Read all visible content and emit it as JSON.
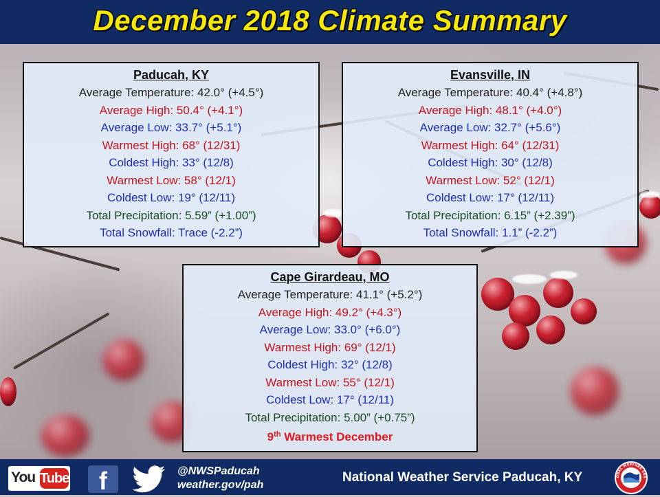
{
  "header": {
    "title": "December 2018 Climate Summary"
  },
  "stations": {
    "paducah": {
      "name": "Paducah, KY",
      "avg_temp": "Average Temperature: 42.0° (+4.5°)",
      "avg_high": "Average High: 50.4° (+4.1°)",
      "avg_low": "Average Low: 33.7° (+5.1°)",
      "warmest_high": "Warmest High: 68° (12/31)",
      "coldest_high": "Coldest High: 33° (12/8)",
      "warmest_low": "Warmest Low: 58° (12/1)",
      "coldest_low": "Coldest Low: 19° (12/11)",
      "total_precip": "Total Precipitation: 5.59” (+1.00”)",
      "total_snow": "Total Snowfall: Trace (-2.2”)"
    },
    "evansville": {
      "name": "Evansville, IN",
      "avg_temp": "Average Temperature: 40.4° (+4.8°)",
      "avg_high": "Average High: 48.1° (+4.0°)",
      "avg_low": "Average Low: 32.7° (+5.6°)",
      "warmest_high": "Warmest High: 64° (12/31)",
      "coldest_high": "Coldest High: 30° (12/8)",
      "warmest_low": "Warmest Low: 52° (12/1)",
      "coldest_low": "Coldest Low: 17° (12/11)",
      "total_precip": "Total Precipitation: 6.15” (+2.39”)",
      "total_snow": "Total Snowfall: 1.1” (-2.2”)"
    },
    "cape": {
      "name": "Cape Girardeau, MO",
      "avg_temp": "Average Temperature: 41.1° (+5.2°)",
      "avg_high": "Average High: 49.2° (+4.3°)",
      "avg_low": "Average Low: 33.0° (+6.0°)",
      "warmest_high": "Warmest High: 69° (12/1)",
      "coldest_high": "Coldest High: 32° (12/8)",
      "warmest_low": "Warmest Low: 55° (12/1)",
      "coldest_low": "Coldest Low: 17° (12/11)",
      "total_precip": "Total Precipitation: 5.00” (+0.75”)",
      "rank_num": "9",
      "rank_sup": "th",
      "rank_text": " Warmest December"
    }
  },
  "footer": {
    "youtube_you": "You",
    "youtube_tube": "Tube",
    "facebook_glyph": "f",
    "twitter_handle": "@NWSPaducah",
    "website": "weather.gov/pah",
    "office": "National Weather Service Paducah, KY",
    "logo_text": "NATIONAL WEATHER SERVICE"
  },
  "colors": {
    "title_bar": "#102a63",
    "title_text": "#f7e80c",
    "red_text": "#c4141c",
    "blue_text": "#1f2fb8",
    "green_text": "#1c4a22"
  }
}
